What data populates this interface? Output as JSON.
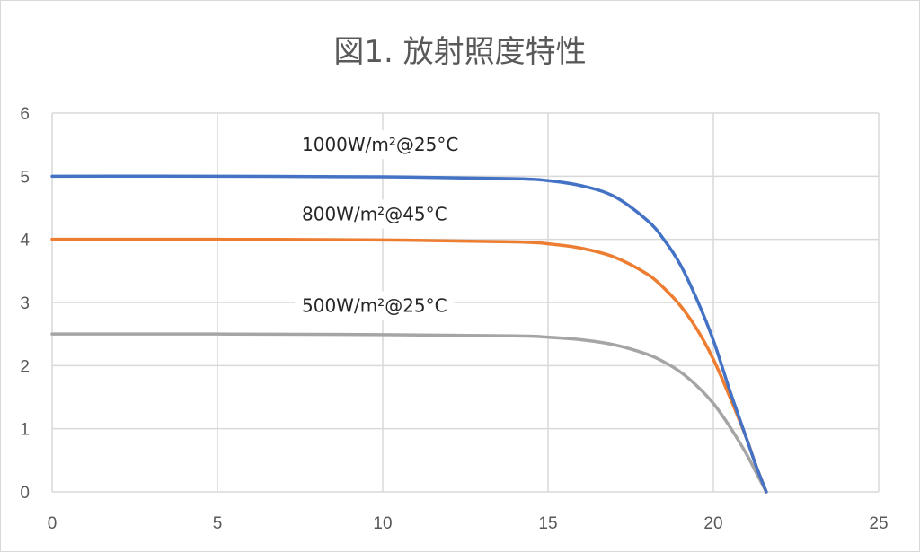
{
  "chart_data": {
    "type": "line",
    "title": "図1. 放射照度特性",
    "xlabel": "",
    "ylabel": "",
    "xlim": [
      0,
      25
    ],
    "ylim": [
      0,
      6
    ],
    "xticks": [
      0,
      5,
      10,
      15,
      20,
      25
    ],
    "yticks": [
      0,
      1,
      2,
      3,
      4,
      5,
      6
    ],
    "grid": true,
    "legend": "none",
    "series": [
      {
        "label": "1000W/m²@25°C",
        "color": "#4472c4",
        "x": [
          0,
          5,
          10,
          14,
          15,
          16,
          17,
          18,
          18.5,
          19,
          19.5,
          20,
          20.5,
          21,
          21.3,
          21.6
        ],
        "y": [
          5.0,
          5.0,
          4.99,
          4.96,
          4.93,
          4.85,
          4.68,
          4.3,
          4.0,
          3.6,
          3.05,
          2.4,
          1.6,
          0.85,
          0.4,
          0.0
        ]
      },
      {
        "label": "800W/m²@45°C",
        "color": "#ed7d31",
        "x": [
          0,
          5,
          10,
          14,
          15,
          16,
          17,
          18,
          18.5,
          19,
          19.5,
          20,
          20.5,
          21,
          21.3,
          21.6
        ],
        "y": [
          4.0,
          4.0,
          3.99,
          3.96,
          3.93,
          3.86,
          3.72,
          3.45,
          3.23,
          2.95,
          2.58,
          2.1,
          1.5,
          0.85,
          0.4,
          0.0
        ]
      },
      {
        "label": "500W/m²@25°C",
        "color": "#a5a5a5",
        "x": [
          0,
          5,
          10,
          14,
          15,
          16,
          17,
          18,
          18.5,
          19,
          19.5,
          20,
          20.5,
          21,
          21.3,
          21.6
        ],
        "y": [
          2.5,
          2.5,
          2.49,
          2.47,
          2.45,
          2.41,
          2.33,
          2.18,
          2.06,
          1.9,
          1.68,
          1.4,
          1.03,
          0.6,
          0.3,
          0.0
        ]
      }
    ],
    "annotations": [
      {
        "text": "1000W/m²@25°C",
        "x": 12.5,
        "y": 5.5
      },
      {
        "text": "800W/m²@45°C",
        "x": 12.5,
        "y": 4.4
      },
      {
        "text": "500W/m²@25°C",
        "x": 12.5,
        "y": 2.95
      }
    ]
  }
}
